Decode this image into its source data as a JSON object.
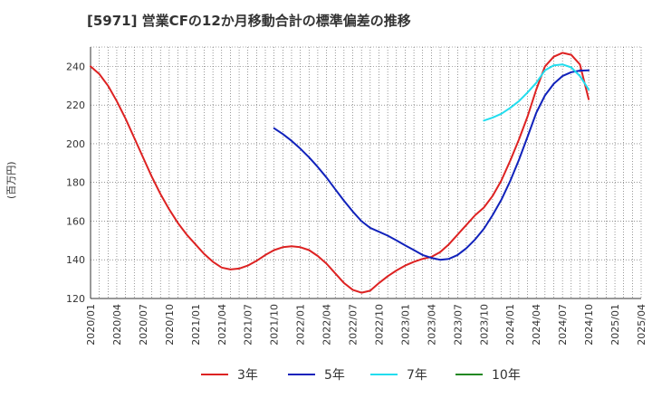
{
  "chart_data": {
    "type": "line",
    "title": "[5971]  営業CFの12か月移動合計の標準偏差の推移",
    "ylabel": "(百万円)",
    "xlabel": "",
    "ylim": [
      120,
      250
    ],
    "yticks": [
      120,
      140,
      160,
      180,
      200,
      220,
      240
    ],
    "xticks": [
      "2020/01",
      "2020/04",
      "2020/07",
      "2020/10",
      "2021/01",
      "2021/04",
      "2021/07",
      "2021/10",
      "2022/01",
      "2022/04",
      "2022/07",
      "2022/10",
      "2023/01",
      "2023/04",
      "2023/07",
      "2023/10",
      "2024/01",
      "2024/04",
      "2024/07",
      "2024/10",
      "2025/01",
      "2025/04"
    ],
    "grid": true,
    "legend_position": "bottom",
    "series": [
      {
        "name": "3年",
        "color": "#dd2222",
        "x": [
          "2020/01",
          "2020/02",
          "2020/03",
          "2020/04",
          "2020/05",
          "2020/06",
          "2020/07",
          "2020/08",
          "2020/09",
          "2020/10",
          "2020/11",
          "2020/12",
          "2021/01",
          "2021/02",
          "2021/03",
          "2021/04",
          "2021/05",
          "2021/06",
          "2021/07",
          "2021/08",
          "2021/09",
          "2021/10",
          "2021/11",
          "2021/12",
          "2022/01",
          "2022/02",
          "2022/03",
          "2022/04",
          "2022/05",
          "2022/06",
          "2022/07",
          "2022/08",
          "2022/09",
          "2022/10",
          "2022/11",
          "2022/12",
          "2023/01",
          "2023/02",
          "2023/03",
          "2023/04",
          "2023/05",
          "2023/06",
          "2023/07",
          "2023/08",
          "2023/09",
          "2023/10",
          "2023/11",
          "2023/12",
          "2024/01",
          "2024/02",
          "2024/03",
          "2024/04",
          "2024/05",
          "2024/06",
          "2024/07",
          "2024/08",
          "2024/09",
          "2024/10"
        ],
        "values": [
          240,
          236,
          230,
          222,
          213,
          203,
          193,
          183,
          174,
          166,
          159,
          153,
          148,
          143,
          139,
          136,
          135,
          135.5,
          137,
          139.5,
          142.5,
          145,
          146.5,
          147,
          146.5,
          145,
          142,
          138,
          133,
          128,
          124.5,
          123,
          124,
          128,
          131.5,
          134.5,
          137,
          139,
          140.5,
          141.5,
          144,
          148,
          153,
          158,
          163,
          167,
          173,
          181,
          191,
          202,
          214,
          228,
          240,
          245,
          247,
          246,
          241,
          223
        ]
      },
      {
        "name": "5年",
        "color": "#1122bb",
        "x": [
          "2021/10",
          "2021/11",
          "2021/12",
          "2022/01",
          "2022/02",
          "2022/03",
          "2022/04",
          "2022/05",
          "2022/06",
          "2022/07",
          "2022/08",
          "2022/09",
          "2022/10",
          "2022/11",
          "2022/12",
          "2023/01",
          "2023/02",
          "2023/03",
          "2023/04",
          "2023/05",
          "2023/06",
          "2023/07",
          "2023/08",
          "2023/09",
          "2023/10",
          "2023/11",
          "2023/12",
          "2024/01",
          "2024/02",
          "2024/03",
          "2024/04",
          "2024/05",
          "2024/06",
          "2024/07",
          "2024/08",
          "2024/09",
          "2024/10"
        ],
        "values": [
          208,
          205,
          201.5,
          197.5,
          193,
          188,
          182.5,
          176.5,
          170.5,
          165,
          160,
          156.5,
          154.5,
          152.5,
          150,
          147.5,
          145,
          142.5,
          141,
          140,
          140.5,
          142.5,
          146,
          150.5,
          156,
          163,
          171,
          180.5,
          191.5,
          203.5,
          216,
          225,
          231,
          235,
          237,
          237.8,
          238
        ]
      },
      {
        "name": "7年",
        "color": "#22ddee",
        "x": [
          "2023/10",
          "2023/11",
          "2023/12",
          "2024/01",
          "2024/02",
          "2024/03",
          "2024/04",
          "2024/05",
          "2024/06",
          "2024/07",
          "2024/08",
          "2024/09",
          "2024/10"
        ],
        "values": [
          212,
          213.5,
          215.5,
          218.5,
          222,
          226.5,
          231.5,
          238,
          240.5,
          241,
          239.5,
          235,
          228
        ]
      },
      {
        "name": "10年",
        "color": "#228822",
        "x": [],
        "values": []
      }
    ]
  }
}
